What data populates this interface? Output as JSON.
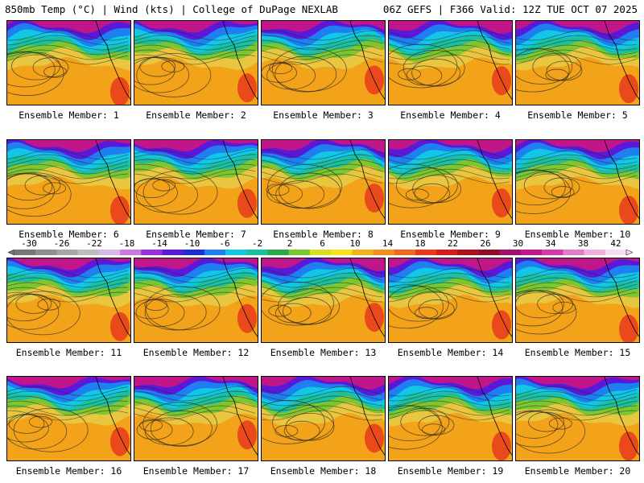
{
  "header": {
    "left": "850mb Temp (°C) | Wind (kts) | College of DuPage NEXLAB",
    "right": "06Z GEFS | F366 Valid: 12Z TUE OCT 07 2025"
  },
  "panel_label_prefix": "Ensemble Member: ",
  "members": [
    1,
    2,
    3,
    4,
    5,
    6,
    7,
    8,
    9,
    10,
    11,
    12,
    13,
    14,
    15,
    16,
    17,
    18,
    19,
    20
  ],
  "colorbar": {
    "ticks": [
      "-30",
      "-26",
      "-22",
      "-18",
      "-14",
      "-10",
      "-6",
      "-2",
      "2",
      "6",
      "10",
      "14",
      "18",
      "22",
      "26",
      "30",
      "34",
      "38",
      "42"
    ],
    "colors": [
      "#777777",
      "#8f8f8f",
      "#a6a6a6",
      "#bdbdbd",
      "#d9b8e8",
      "#c77ae0",
      "#9b2fe0",
      "#5a18d8",
      "#1c2fd6",
      "#1f7ef0",
      "#12c6e6",
      "#1cc0a0",
      "#2aa84a",
      "#7cc632",
      "#d9e021",
      "#f5e31a",
      "#f2b21a",
      "#f0901e",
      "#ee6a1e",
      "#e8391c",
      "#d51c1c",
      "#b0101c",
      "#8e0e28",
      "#a0126a",
      "#c0168a",
      "#d63aa8",
      "#e27cc6",
      "#eeb0de",
      "#f6dcf0"
    ],
    "min": -30,
    "max": 42
  }
}
